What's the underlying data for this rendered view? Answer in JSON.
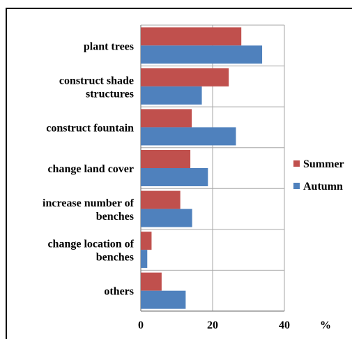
{
  "chart_data": {
    "type": "bar",
    "orientation": "horizontal",
    "categories": [
      [
        "plant trees"
      ],
      [
        "construct shade",
        "structures"
      ],
      [
        "construct fountain"
      ],
      [
        "change land cover"
      ],
      [
        "increase number of",
        "benches"
      ],
      [
        "change location of",
        "benches"
      ],
      [
        "others"
      ]
    ],
    "series": [
      {
        "name": "Summer",
        "color": "#c0504d",
        "values": [
          28.0,
          24.5,
          14.2,
          13.8,
          11.0,
          3.0,
          5.8
        ]
      },
      {
        "name": "Autumn",
        "color": "#4f81bd",
        "values": [
          33.8,
          17.0,
          26.5,
          18.7,
          14.3,
          1.8,
          12.5
        ]
      }
    ],
    "xlim": [
      0,
      40
    ],
    "xticks": [
      0,
      20,
      40
    ],
    "xlabel": "%",
    "grid": "vertical",
    "legend": "right"
  }
}
